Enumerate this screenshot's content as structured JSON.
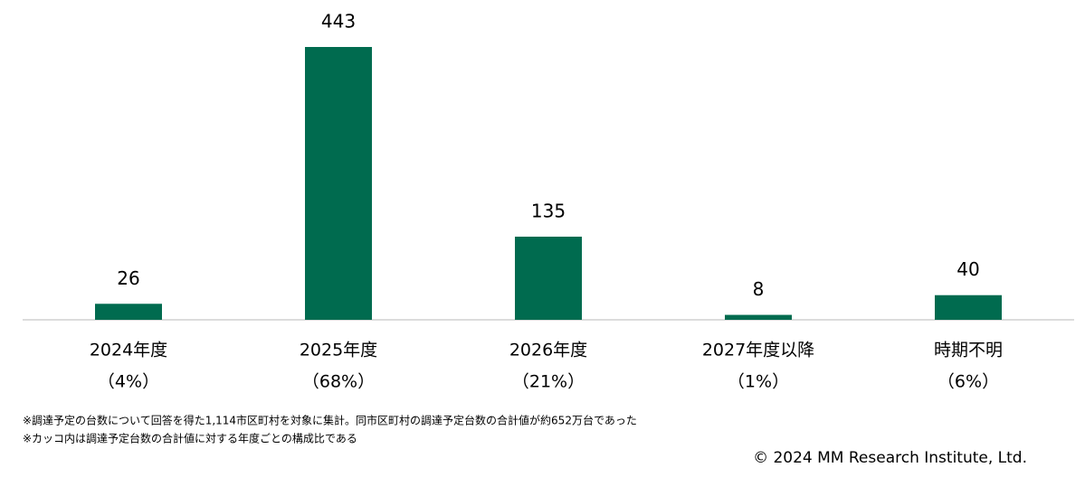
{
  "chart_data": {
    "type": "bar",
    "categories": [
      "2024年度",
      "2025年度",
      "2026年度",
      "2027年度以降",
      "時期不明"
    ],
    "category_notes": [
      "（4%）",
      "（68%）",
      "（21%）",
      "（1%）",
      "（6%）"
    ],
    "values": [
      26,
      443,
      135,
      8,
      40
    ],
    "color": "#006b4f",
    "notes": [
      "※調達予定の台数について回答を得た1,114市区町村を対象に集計。同市区町村の調達予定台数の合計値が約652万台であった",
      "※カッコ内は調達予定台数の合計値に対する年度ごとの構成比である"
    ],
    "copyright": "© 2024 MM Research Institute, Ltd."
  }
}
